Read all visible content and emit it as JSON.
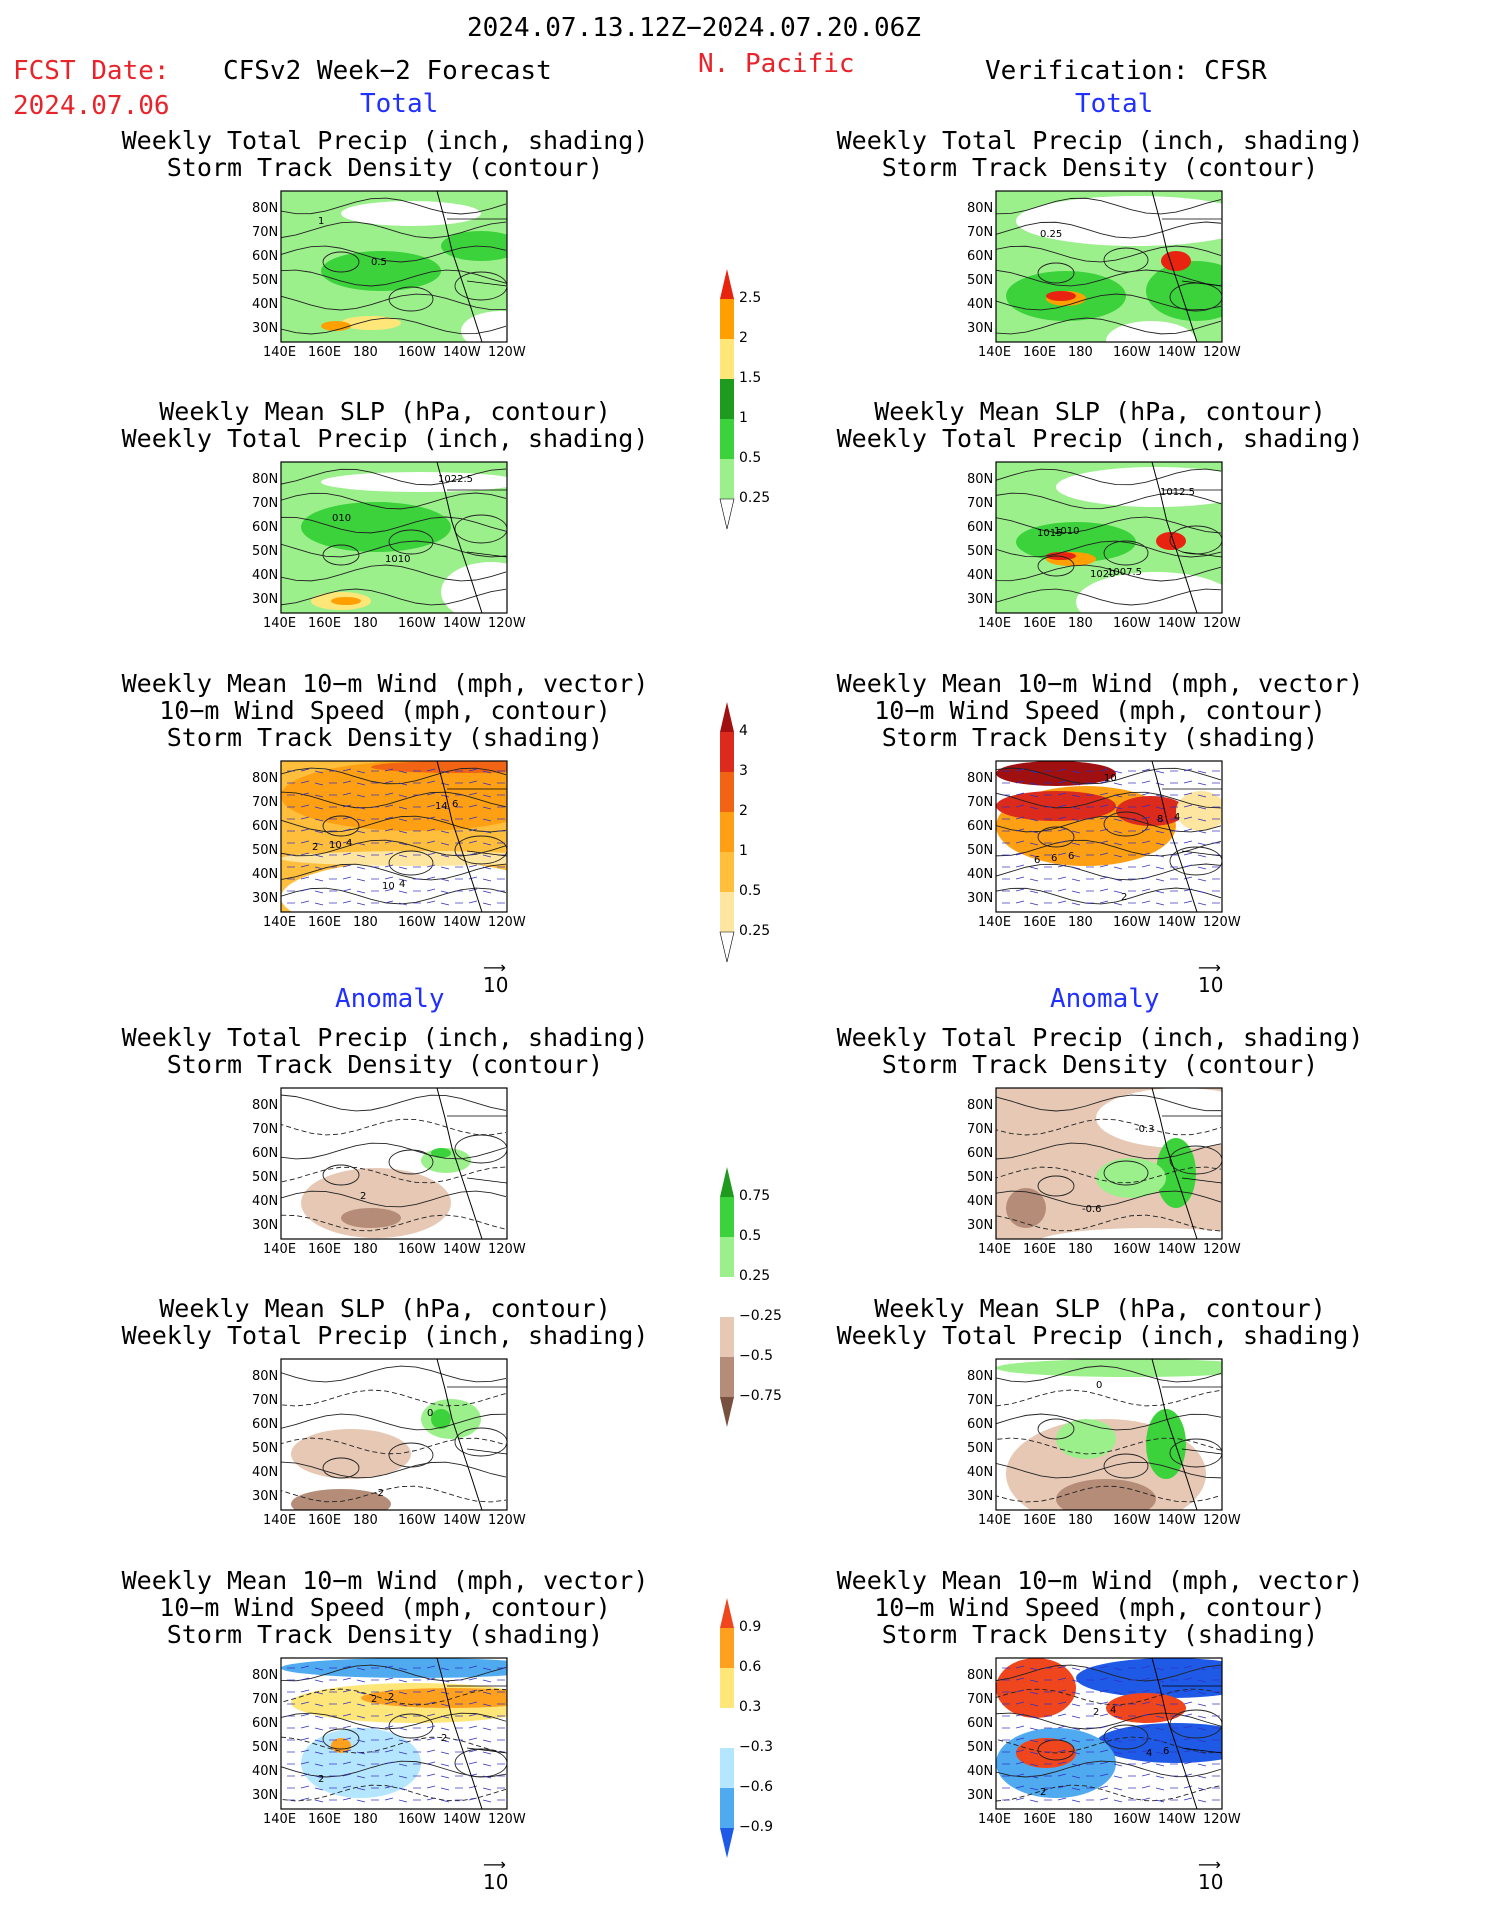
{
  "header": {
    "date_range": "2024.07.13.12Z−2024.07.20.06Z",
    "fcst_label": "FCST Date:",
    "fcst_date": "2024.07.06",
    "left_title": "CFSv2 Week−2 Forecast",
    "region": "N. Pacific",
    "right_title": "Verification: CFSR"
  },
  "sections": {
    "total": "Total",
    "anomaly": "Anomaly"
  },
  "panel_titles": {
    "precip_storm": [
      "Weekly Total Precip (inch, shading)",
      "Storm Track Density (contour)"
    ],
    "slp_precip": [
      "Weekly Mean SLP (hPa, contour)",
      "Weekly Total Precip (inch, shading)"
    ],
    "wind_storm": [
      "Weekly Mean 10−m Wind (mph, vector)",
      "10−m Wind Speed (mph, contour)",
      "Storm Track Density (shading)"
    ]
  },
  "axes": {
    "lat_labels": [
      "80N",
      "70N",
      "60N",
      "50N",
      "40N",
      "30N"
    ],
    "lon_labels": [
      "140E",
      "160E",
      "180",
      "160W",
      "140W",
      "120W"
    ]
  },
  "vector_ref": "10",
  "contour_labels": {
    "p1": [
      "1",
      "0.5"
    ],
    "p2": [
      "0.25"
    ],
    "p3": [
      "010",
      "1010",
      "1022.5"
    ],
    "p4": [
      "1010",
      "1007.5",
      "1012.5",
      "1015",
      "1020"
    ],
    "p5": [
      "4",
      "4",
      "6",
      "10",
      "10",
      "14",
      "2"
    ],
    "p6": [
      "6",
      "2",
      "4",
      "6",
      "10",
      "8",
      "6"
    ],
    "p7": [
      "2"
    ],
    "p8": [
      "-0.6",
      "-0.3"
    ],
    "p9": [
      "-2",
      "0"
    ],
    "p10": [
      "0"
    ],
    "p11": [
      "2",
      "2",
      "2",
      "2"
    ],
    "p12": [
      "4",
      "6",
      "2",
      "2",
      "4"
    ]
  },
  "colorbars": {
    "precip_total": {
      "labels": [
        "2.5",
        "2",
        "1.5",
        "1",
        "0.5",
        "0.25"
      ],
      "colors": [
        "#e8230f",
        "#ffa000",
        "#ffe678",
        "#1e9a1e",
        "#3cd23c",
        "#9cf08c",
        "#ffffff"
      ]
    },
    "storm_total": {
      "labels": [
        "4",
        "3",
        "2",
        "1",
        "0.5",
        "0.25"
      ],
      "colors": [
        "#a01010",
        "#dc2a1c",
        "#f06414",
        "#ffa014",
        "#ffbe3c",
        "#ffe6a0",
        "#ffffff"
      ]
    },
    "precip_anom": {
      "labels": [
        "0.75",
        "0.5",
        "0.25",
        "−0.25",
        "−0.5",
        "−0.75"
      ],
      "colors": [
        "#1e9a1e",
        "#3cd23c",
        "#9cf08c",
        "#ffffff",
        "#e6c8b4",
        "#b48c78",
        "#785040"
      ]
    },
    "storm_anom": {
      "labels": [
        "0.9",
        "0.6",
        "0.3",
        "−0.3",
        "−0.6",
        "−0.9"
      ],
      "colors": [
        "#f0461e",
        "#ffa01e",
        "#ffe678",
        "#ffffff",
        "#b4e6ff",
        "#50aaf0",
        "#1e5ae6"
      ]
    }
  }
}
